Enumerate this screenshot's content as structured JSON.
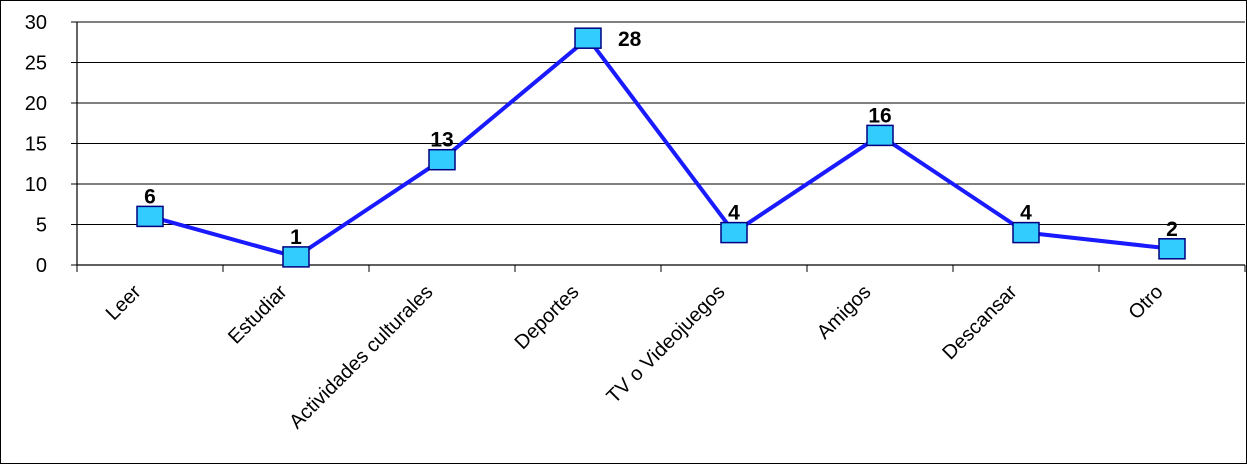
{
  "chart_data": {
    "type": "line",
    "title": "",
    "xlabel": "",
    "ylabel": "",
    "categories": [
      "Leer",
      "Estudiar",
      "Actividades culturales",
      "Deportes",
      "TV o Videojuegos",
      "Amigos",
      "Descansar",
      "Otro"
    ],
    "series": [
      {
        "values": [
          6,
          1,
          13,
          28,
          4,
          16,
          4,
          2
        ],
        "color": "#1a1aff",
        "marker": "square",
        "marker_color": "#33ccff"
      }
    ],
    "ylim": [
      0,
      30
    ],
    "yticks": [
      0,
      5,
      10,
      15,
      20,
      25,
      30
    ],
    "data_labels": [
      "6",
      "1",
      "13",
      "28",
      "4",
      "16",
      "4",
      "2"
    ],
    "grid": true,
    "legend": "none"
  }
}
